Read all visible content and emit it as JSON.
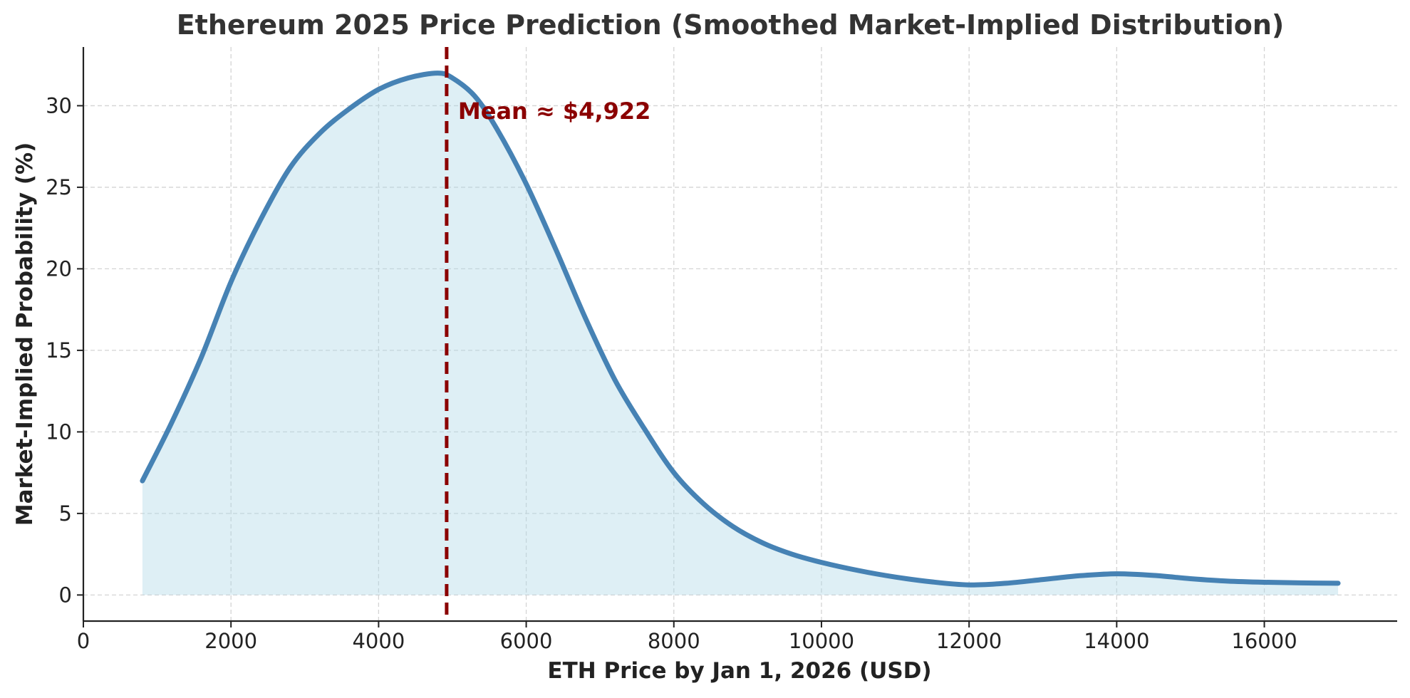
{
  "chart_data": {
    "type": "line",
    "title": "Ethereum 2025 Price Prediction (Smoothed Market-Implied Distribution)",
    "xlabel": "ETH Price by Jan 1, 2026 (USD)",
    "ylabel": "Market-Implied Probability (%)",
    "xlim": [
      0,
      17800
    ],
    "ylim": [
      -1.6,
      33.6
    ],
    "xticks": [
      0,
      2000,
      4000,
      6000,
      8000,
      10000,
      12000,
      14000,
      16000
    ],
    "yticks": [
      0,
      5,
      10,
      15,
      20,
      25,
      30
    ],
    "grid": true,
    "series": [
      {
        "name": "Market-Implied Probability",
        "color": "#4682b4",
        "fill_color": "#add8e6",
        "x": [
          800,
          1200,
          1600,
          2000,
          2400,
          2800,
          3200,
          3600,
          4000,
          4400,
          4800,
          5000,
          5300,
          5600,
          6000,
          6400,
          6800,
          7200,
          7600,
          8000,
          8400,
          8800,
          9200,
          9600,
          10000,
          10500,
          11000,
          11500,
          12000,
          12500,
          13000,
          13500,
          14000,
          14500,
          15000,
          15500,
          16000,
          16500,
          17000
        ],
        "y": [
          7.0,
          10.6,
          14.6,
          19.2,
          23.0,
          26.2,
          28.3,
          29.8,
          31.0,
          31.7,
          32.0,
          31.7,
          30.6,
          28.6,
          25.2,
          21.2,
          17.0,
          13.2,
          10.2,
          7.5,
          5.6,
          4.2,
          3.2,
          2.5,
          2.0,
          1.5,
          1.1,
          0.8,
          0.62,
          0.72,
          0.95,
          1.18,
          1.3,
          1.2,
          1.0,
          0.85,
          0.78,
          0.74,
          0.72
        ]
      }
    ],
    "mean_line": {
      "x": 4922,
      "label": "Mean ≈ $4,922",
      "color": "#8b0000"
    }
  }
}
